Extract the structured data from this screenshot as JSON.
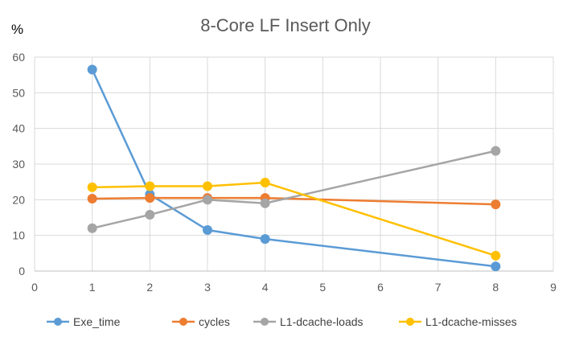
{
  "chart_data": {
    "type": "line",
    "title": "8-Core LF Insert Only",
    "ylabel": "%",
    "xlabel": "",
    "xlim": [
      0,
      9
    ],
    "ylim": [
      0,
      60
    ],
    "x_ticks": [
      0,
      1,
      2,
      3,
      4,
      5,
      6,
      7,
      8,
      9
    ],
    "y_ticks": [
      0,
      10,
      20,
      30,
      40,
      50,
      60
    ],
    "x": [
      1,
      2,
      3,
      4,
      8
    ],
    "grid": true,
    "legend_position": "bottom",
    "series": [
      {
        "name": "Exe_time",
        "color": "#5B9BD5",
        "values": [
          56.5,
          21.5,
          11.5,
          9,
          1.3
        ]
      },
      {
        "name": "cycles",
        "color": "#ED7D31",
        "values": [
          20.3,
          20.5,
          20.5,
          20.5,
          18.7
        ]
      },
      {
        "name": "L1-dcache-loads",
        "color": "#A5A5A5",
        "values": [
          12,
          15.8,
          20,
          19,
          33.7
        ]
      },
      {
        "name": "L1-dcache-misses",
        "color": "#FFC000",
        "values": [
          23.5,
          23.8,
          23.8,
          24.8,
          4.3
        ]
      }
    ]
  }
}
